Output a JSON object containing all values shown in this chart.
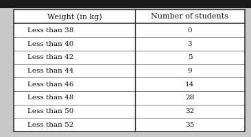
{
  "col1_header": "Weight (in kg)",
  "col2_header": "Number of students",
  "rows": [
    [
      "Less than 38",
      "0"
    ],
    [
      "Less than 40",
      "3"
    ],
    [
      "Less than 42",
      "5"
    ],
    [
      "Less than 44",
      "9"
    ],
    [
      "Less than 46",
      "14"
    ],
    [
      "Less than 48",
      "28"
    ],
    [
      "Less than 50",
      "32"
    ],
    [
      "Less than 52",
      "35"
    ]
  ],
  "fig_bg": "#c8c8c8",
  "table_bg": "#f0ede8",
  "header_bg": "#f0ede8",
  "border_color": "#333333",
  "text_color": "#111111",
  "header_fontsize": 8.0,
  "cell_fontsize": 7.5,
  "top_bar_color": "#1a1a1a",
  "top_bar_height": 0.06
}
